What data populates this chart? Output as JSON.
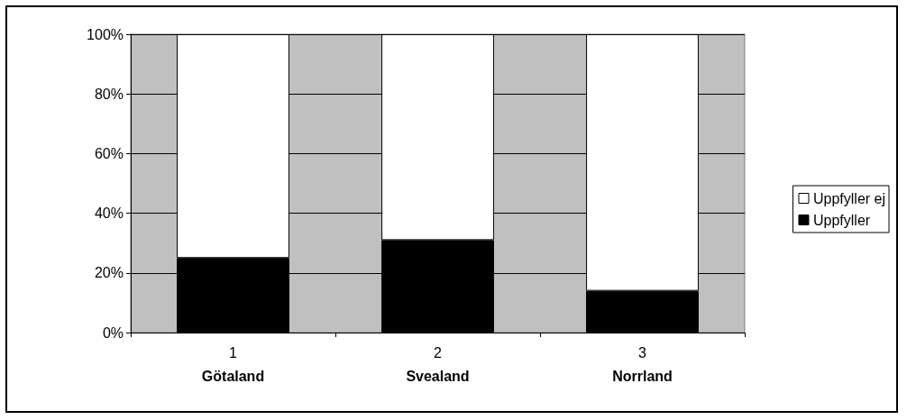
{
  "chart_data": {
    "type": "bar",
    "stacked": true,
    "categories": [
      "1\nGötaland",
      "2\nSvealand",
      "3\nNorrland"
    ],
    "series": [
      {
        "name": "Uppfyller",
        "color": "#000000",
        "values": [
          25,
          31,
          14
        ]
      },
      {
        "name": "Uppfyller ej",
        "color": "#ffffff",
        "values": [
          75,
          69,
          86
        ]
      }
    ],
    "ylim": [
      0,
      100
    ],
    "yticks": [
      {
        "value": 0,
        "label": "0%"
      },
      {
        "value": 20,
        "label": "20%"
      },
      {
        "value": 40,
        "label": "40%"
      },
      {
        "value": 60,
        "label": "60%"
      },
      {
        "value": 80,
        "label": "80%"
      },
      {
        "value": 100,
        "label": "100%"
      }
    ],
    "grid": "y",
    "legend": "right"
  }
}
